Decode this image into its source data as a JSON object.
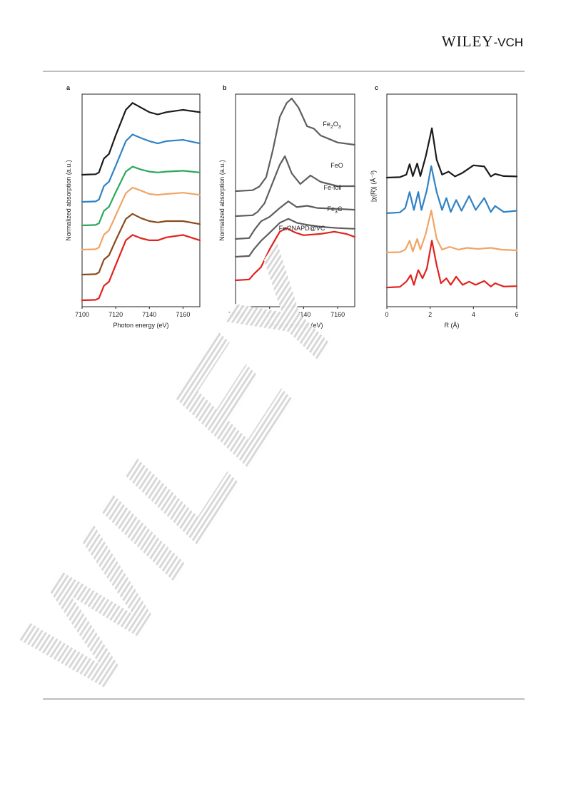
{
  "header": {
    "publisher_main": "Wiley",
    "publisher_suffix": "-VCH"
  },
  "colors": {
    "black": "#1a1a1a",
    "blue": "#2f82c4",
    "green": "#2aa85a",
    "orange": "#f0a566",
    "brown": "#8a4a1c",
    "red": "#e2211c",
    "gray": "#5e5e5e"
  },
  "chart_data": [
    {
      "panel": "a",
      "type": "line",
      "xlabel": "Photon energy (eV)",
      "ylabel": "Normalized absorption (a.u.)",
      "xlim": [
        7100,
        7170
      ],
      "xticks": [
        7100,
        7120,
        7140,
        7160
      ],
      "series": [
        {
          "color": "black",
          "points": [
            [
              7100,
              0.0
            ],
            [
              7108,
              0.01
            ],
            [
              7110,
              0.05
            ],
            [
              7113,
              0.35
            ],
            [
              7116,
              0.45
            ],
            [
              7120,
              0.85
            ],
            [
              7126,
              1.4
            ],
            [
              7130,
              1.55
            ],
            [
              7135,
              1.45
            ],
            [
              7140,
              1.35
            ],
            [
              7145,
              1.3
            ],
            [
              7150,
              1.35
            ],
            [
              7160,
              1.4
            ],
            [
              7170,
              1.35
            ]
          ]
        },
        {
          "color": "blue",
          "points": [
            [
              7100,
              0.0
            ],
            [
              7108,
              0.01
            ],
            [
              7110,
              0.05
            ],
            [
              7113,
              0.35
            ],
            [
              7116,
              0.45
            ],
            [
              7120,
              0.8
            ],
            [
              7126,
              1.35
            ],
            [
              7130,
              1.5
            ],
            [
              7135,
              1.42
            ],
            [
              7140,
              1.35
            ],
            [
              7145,
              1.3
            ],
            [
              7150,
              1.35
            ],
            [
              7160,
              1.38
            ],
            [
              7170,
              1.3
            ]
          ]
        },
        {
          "color": "green",
          "points": [
            [
              7100,
              0.0
            ],
            [
              7108,
              0.01
            ],
            [
              7110,
              0.05
            ],
            [
              7113,
              0.35
            ],
            [
              7116,
              0.45
            ],
            [
              7120,
              0.8
            ],
            [
              7126,
              1.3
            ],
            [
              7130,
              1.42
            ],
            [
              7135,
              1.35
            ],
            [
              7140,
              1.3
            ],
            [
              7145,
              1.28
            ],
            [
              7150,
              1.3
            ],
            [
              7160,
              1.32
            ],
            [
              7170,
              1.28
            ]
          ]
        },
        {
          "color": "orange",
          "points": [
            [
              7100,
              0.0
            ],
            [
              7108,
              0.01
            ],
            [
              7110,
              0.05
            ],
            [
              7113,
              0.35
            ],
            [
              7116,
              0.45
            ],
            [
              7120,
              0.8
            ],
            [
              7126,
              1.32
            ],
            [
              7130,
              1.45
            ],
            [
              7135,
              1.38
            ],
            [
              7140,
              1.3
            ],
            [
              7145,
              1.28
            ],
            [
              7150,
              1.3
            ],
            [
              7160,
              1.33
            ],
            [
              7170,
              1.28
            ]
          ]
        },
        {
          "color": "brown",
          "points": [
            [
              7100,
              0.0
            ],
            [
              7108,
              0.01
            ],
            [
              7110,
              0.05
            ],
            [
              7113,
              0.35
            ],
            [
              7116,
              0.45
            ],
            [
              7120,
              0.8
            ],
            [
              7126,
              1.3
            ],
            [
              7130,
              1.42
            ],
            [
              7135,
              1.32
            ],
            [
              7140,
              1.25
            ],
            [
              7145,
              1.22
            ],
            [
              7150,
              1.25
            ],
            [
              7160,
              1.25
            ],
            [
              7170,
              1.18
            ]
          ]
        },
        {
          "color": "red",
          "points": [
            [
              7100,
              0.0
            ],
            [
              7108,
              0.01
            ],
            [
              7110,
              0.05
            ],
            [
              7113,
              0.35
            ],
            [
              7116,
              0.45
            ],
            [
              7120,
              0.85
            ],
            [
              7126,
              1.45
            ],
            [
              7130,
              1.58
            ],
            [
              7135,
              1.5
            ],
            [
              7140,
              1.45
            ],
            [
              7145,
              1.45
            ],
            [
              7150,
              1.52
            ],
            [
              7160,
              1.58
            ],
            [
              7170,
              1.45
            ]
          ]
        }
      ]
    },
    {
      "panel": "b",
      "type": "line",
      "xlabel": "Photon energy (eV)",
      "ylabel": "Normalized absorption (a.u.)",
      "xlim": [
        7100,
        7170
      ],
      "xticks": [
        7100,
        7120,
        7140,
        7160
      ],
      "series": [
        {
          "color": "gray",
          "label": "Fe2O3",
          "points": [
            [
              7100,
              0.0
            ],
            [
              7110,
              0.02
            ],
            [
              7114,
              0.1
            ],
            [
              7118,
              0.3
            ],
            [
              7122,
              0.9
            ],
            [
              7126,
              1.6
            ],
            [
              7130,
              1.9
            ],
            [
              7133,
              2.0
            ],
            [
              7137,
              1.8
            ],
            [
              7142,
              1.4
            ],
            [
              7146,
              1.35
            ],
            [
              7150,
              1.2
            ],
            [
              7160,
              1.05
            ],
            [
              7170,
              1.0
            ]
          ]
        },
        {
          "color": "gray",
          "label": "FeO",
          "points": [
            [
              7100,
              0.0
            ],
            [
              7110,
              0.02
            ],
            [
              7113,
              0.1
            ],
            [
              7117,
              0.3
            ],
            [
              7121,
              0.7
            ],
            [
              7126,
              1.2
            ],
            [
              7129,
              1.4
            ],
            [
              7133,
              1.0
            ],
            [
              7138,
              0.75
            ],
            [
              7144,
              0.95
            ],
            [
              7150,
              0.8
            ],
            [
              7160,
              0.7
            ],
            [
              7170,
              0.7
            ]
          ]
        },
        {
          "color": "gray",
          "label": "Fe-foil",
          "points": [
            [
              7100,
              0.0
            ],
            [
              7108,
              0.02
            ],
            [
              7111,
              0.2
            ],
            [
              7115,
              0.4
            ],
            [
              7120,
              0.5
            ],
            [
              7126,
              0.7
            ],
            [
              7131,
              0.85
            ],
            [
              7136,
              0.72
            ],
            [
              7142,
              0.75
            ],
            [
              7148,
              0.7
            ],
            [
              7160,
              0.68
            ],
            [
              7170,
              0.66
            ]
          ]
        },
        {
          "color": "gray",
          "label": "Fe3C",
          "points": [
            [
              7100,
              0.0
            ],
            [
              7108,
              0.02
            ],
            [
              7111,
              0.2
            ],
            [
              7115,
              0.4
            ],
            [
              7120,
              0.6
            ],
            [
              7126,
              0.85
            ],
            [
              7131,
              0.95
            ],
            [
              7136,
              0.85
            ],
            [
              7142,
              0.8
            ],
            [
              7150,
              0.75
            ],
            [
              7160,
              0.72
            ],
            [
              7170,
              0.7
            ]
          ]
        },
        {
          "color": "red",
          "label": "Fe/2NAPD@VC",
          "points": [
            [
              7100,
              0.0
            ],
            [
              7108,
              0.02
            ],
            [
              7111,
              0.15
            ],
            [
              7115,
              0.3
            ],
            [
              7120,
              0.7
            ],
            [
              7126,
              1.1
            ],
            [
              7130,
              1.18
            ],
            [
              7135,
              1.08
            ],
            [
              7140,
              1.02
            ],
            [
              7150,
              1.05
            ],
            [
              7158,
              1.1
            ],
            [
              7165,
              1.05
            ],
            [
              7170,
              0.98
            ]
          ]
        }
      ]
    },
    {
      "panel": "c",
      "type": "line",
      "xlabel": "R (Å)",
      "ylabel": "|χ(R)| (Å⁻³)",
      "xlim": [
        0,
        6
      ],
      "xticks": [
        0,
        2,
        4,
        6
      ],
      "series": [
        {
          "color": "black",
          "points": [
            [
              0,
              0.02
            ],
            [
              0.6,
              0.03
            ],
            [
              0.9,
              0.1
            ],
            [
              1.05,
              0.38
            ],
            [
              1.2,
              0.06
            ],
            [
              1.4,
              0.4
            ],
            [
              1.55,
              0.06
            ],
            [
              1.8,
              0.6
            ],
            [
              2.08,
              1.35
            ],
            [
              2.3,
              0.5
            ],
            [
              2.55,
              0.1
            ],
            [
              2.85,
              0.18
            ],
            [
              3.15,
              0.05
            ],
            [
              3.5,
              0.15
            ],
            [
              4.0,
              0.35
            ],
            [
              4.5,
              0.32
            ],
            [
              4.8,
              0.05
            ],
            [
              5.0,
              0.12
            ],
            [
              5.4,
              0.06
            ],
            [
              6,
              0.05
            ]
          ]
        },
        {
          "color": "blue",
          "points": [
            [
              0,
              0.02
            ],
            [
              0.6,
              0.04
            ],
            [
              0.85,
              0.15
            ],
            [
              1.05,
              0.55
            ],
            [
              1.25,
              0.1
            ],
            [
              1.45,
              0.55
            ],
            [
              1.6,
              0.1
            ],
            [
              1.85,
              0.6
            ],
            [
              2.05,
              1.2
            ],
            [
              2.3,
              0.55
            ],
            [
              2.55,
              0.1
            ],
            [
              2.75,
              0.4
            ],
            [
              2.95,
              0.05
            ],
            [
              3.2,
              0.35
            ],
            [
              3.45,
              0.08
            ],
            [
              3.8,
              0.45
            ],
            [
              4.1,
              0.1
            ],
            [
              4.5,
              0.4
            ],
            [
              4.8,
              0.05
            ],
            [
              5.0,
              0.2
            ],
            [
              5.4,
              0.05
            ],
            [
              6,
              0.08
            ]
          ]
        },
        {
          "color": "orange",
          "points": [
            [
              0,
              0.02
            ],
            [
              0.6,
              0.03
            ],
            [
              0.85,
              0.1
            ],
            [
              1.05,
              0.35
            ],
            [
              1.2,
              0.05
            ],
            [
              1.4,
              0.4
            ],
            [
              1.55,
              0.1
            ],
            [
              1.8,
              0.55
            ],
            [
              2.05,
              1.2
            ],
            [
              2.3,
              0.4
            ],
            [
              2.55,
              0.1
            ],
            [
              2.9,
              0.18
            ],
            [
              3.3,
              0.1
            ],
            [
              3.7,
              0.15
            ],
            [
              4.2,
              0.12
            ],
            [
              4.8,
              0.15
            ],
            [
              5.3,
              0.1
            ],
            [
              6,
              0.08
            ]
          ]
        },
        {
          "color": "red",
          "points": [
            [
              0,
              0.02
            ],
            [
              0.6,
              0.04
            ],
            [
              0.9,
              0.2
            ],
            [
              1.1,
              0.4
            ],
            [
              1.25,
              0.1
            ],
            [
              1.45,
              0.55
            ],
            [
              1.65,
              0.3
            ],
            [
              1.85,
              0.6
            ],
            [
              2.08,
              1.45
            ],
            [
              2.3,
              0.7
            ],
            [
              2.5,
              0.15
            ],
            [
              2.75,
              0.3
            ],
            [
              2.95,
              0.1
            ],
            [
              3.2,
              0.35
            ],
            [
              3.5,
              0.1
            ],
            [
              3.8,
              0.2
            ],
            [
              4.1,
              0.1
            ],
            [
              4.5,
              0.22
            ],
            [
              4.8,
              0.05
            ],
            [
              5.0,
              0.15
            ],
            [
              5.4,
              0.05
            ],
            [
              6,
              0.06
            ]
          ]
        }
      ]
    }
  ]
}
